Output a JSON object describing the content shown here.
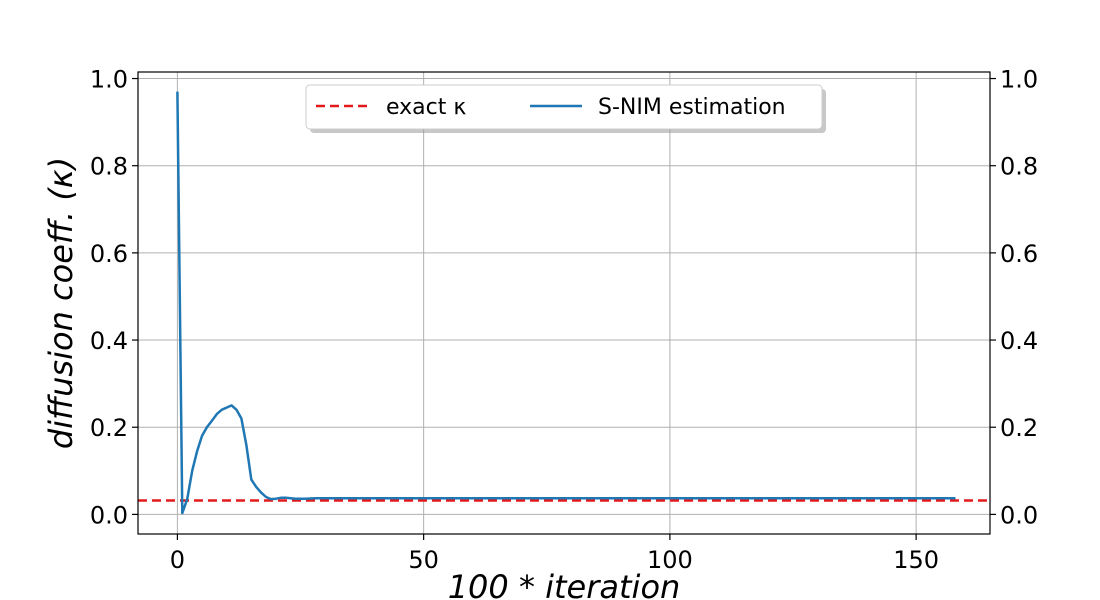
{
  "chart_data": {
    "type": "line",
    "xlabel": "100 * iteration",
    "ylabel": "diffusion coeff.  (κ)",
    "xlim": [
      -8,
      165
    ],
    "ylim": [
      -0.045,
      1.015
    ],
    "xticks": [
      0,
      50,
      100,
      150
    ],
    "yticks": [
      0.0,
      0.2,
      0.4,
      0.6,
      0.8,
      1.0
    ],
    "xtick_labels": [
      "0",
      "50",
      "100",
      "150"
    ],
    "ytick_labels": [
      "0.0",
      "0.2",
      "0.4",
      "0.6",
      "0.8",
      "1.0"
    ],
    "right_ytick_labels": [
      "0.0",
      "0.2",
      "0.4",
      "0.6",
      "0.8",
      "1.0"
    ],
    "grid": true,
    "legend_position": "top-center",
    "series": [
      {
        "name": "exact κ",
        "style": "dashed",
        "color": "#e31a1c",
        "hline": 0.032
      },
      {
        "name": "S-NIM estimation",
        "style": "solid",
        "color": "#1f77b4",
        "x": [
          0,
          1,
          2,
          3,
          4,
          5,
          6,
          7,
          8,
          9,
          10,
          11,
          12,
          13,
          14,
          15,
          16,
          17,
          18,
          19,
          20,
          21,
          22,
          24,
          26,
          28,
          30,
          40,
          60,
          80,
          100,
          120,
          140,
          158
        ],
        "y": [
          0.97,
          0.003,
          0.035,
          0.1,
          0.145,
          0.18,
          0.2,
          0.215,
          0.23,
          0.24,
          0.245,
          0.25,
          0.24,
          0.22,
          0.16,
          0.08,
          0.063,
          0.05,
          0.04,
          0.035,
          0.036,
          0.038,
          0.038,
          0.036,
          0.036,
          0.037,
          0.037,
          0.037,
          0.037,
          0.037,
          0.037,
          0.037,
          0.037,
          0.037
        ]
      }
    ]
  }
}
